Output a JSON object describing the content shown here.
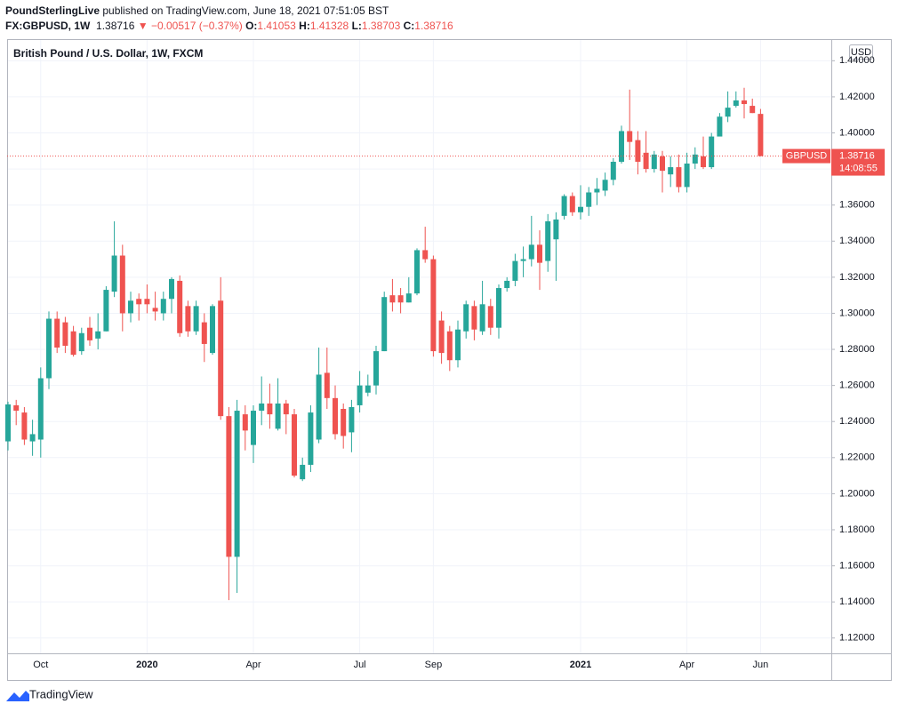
{
  "header": {
    "author": "PoundSterlingLive",
    "published": "published on TradingView.com, June 18, 2021 07:51:05 BST",
    "symbol": "FX:GBPUSD, 1W",
    "last": "1.38716",
    "arrow": "▼",
    "change": "−0.00517 (−0.37%)",
    "o_label": "O:",
    "o": "1.41053",
    "h_label": "H:",
    "h": "1.41328",
    "l_label": "L:",
    "l": "1.38703",
    "c_label": "C:",
    "c": "1.38716"
  },
  "footer": {
    "brand": "TradingView"
  },
  "chart_data": {
    "type": "candlestick",
    "title": "British Pound / U.S. Dollar, 1W, FXCM",
    "currency": "USD",
    "symbol": "GBPUSD",
    "countdown": "14:08:55",
    "up_color": "#26a69a",
    "down_color": "#ef5350",
    "grid": true,
    "ylim": [
      1.1115,
      1.4515
    ],
    "yticks": [
      {
        "value": 1.12,
        "label": "1.12000"
      },
      {
        "value": 1.14,
        "label": "1.14000"
      },
      {
        "value": 1.16,
        "label": "1.16000"
      },
      {
        "value": 1.18,
        "label": "1.18000"
      },
      {
        "value": 1.2,
        "label": "1.20000"
      },
      {
        "value": 1.22,
        "label": "1.22000"
      },
      {
        "value": 1.24,
        "label": "1.24000"
      },
      {
        "value": 1.26,
        "label": "1.26000"
      },
      {
        "value": 1.28,
        "label": "1.28000"
      },
      {
        "value": 1.3,
        "label": "1.30000"
      },
      {
        "value": 1.32,
        "label": "1.32000"
      },
      {
        "value": 1.34,
        "label": "1.34000"
      },
      {
        "value": 1.36,
        "label": "1.36000"
      },
      {
        "value": 1.38,
        "label": "1.38000"
      },
      {
        "value": 1.4,
        "label": "1.40000"
      },
      {
        "value": 1.42,
        "label": "1.42000"
      },
      {
        "value": 1.44,
        "label": "1.44000"
      }
    ],
    "categories": [
      null,
      null,
      null,
      null,
      "Oct",
      null,
      null,
      null,
      null,
      null,
      null,
      null,
      null,
      null,
      null,
      null,
      null,
      "2020",
      null,
      null,
      null,
      null,
      null,
      null,
      null,
      null,
      null,
      null,
      null,
      null,
      "Apr",
      null,
      null,
      null,
      null,
      null,
      null,
      null,
      null,
      null,
      null,
      null,
      null,
      "Jul",
      null,
      null,
      null,
      null,
      null,
      null,
      null,
      null,
      "Sep",
      null,
      null,
      null,
      null,
      null,
      null,
      null,
      null,
      null,
      null,
      null,
      null,
      null,
      null,
      null,
      null,
      null,
      "2021",
      null,
      null,
      null,
      null,
      null,
      null,
      null,
      null,
      null,
      null,
      null,
      null,
      "Apr",
      null,
      null,
      null,
      null,
      null,
      null,
      null,
      null,
      "Jun"
    ],
    "open": [
      1.229,
      1.249,
      1.245,
      1.229,
      1.23,
      1.264,
      1.297,
      1.295,
      1.29,
      1.279,
      1.292,
      1.286,
      1.29,
      1.312,
      1.332,
      1.3,
      1.308,
      1.308,
      1.303,
      1.3,
      1.308,
      1.318,
      1.304,
      1.29,
      1.295,
      1.278,
      1.307,
      1.243,
      1.165,
      1.244,
      1.227,
      1.246,
      1.25,
      1.236,
      1.25,
      1.244,
      1.208,
      1.216,
      1.23,
      1.267,
      1.253,
      1.247,
      1.234,
      1.249,
      1.256,
      1.26,
      1.279,
      1.31,
      1.31,
      1.306,
      1.311,
      1.335,
      1.33,
      1.296,
      1.29,
      1.274,
      1.29,
      1.304,
      1.29,
      1.304,
      1.292,
      1.314,
      1.318,
      1.329,
      1.33,
      1.338,
      1.329,
      1.341,
      1.354,
      1.365,
      1.356,
      1.359,
      1.367,
      1.368,
      1.374,
      1.384,
      1.401,
      1.396,
      1.389,
      1.38,
      1.387,
      1.377,
      1.381,
      1.37,
      1.383,
      1.387,
      1.381,
      1.398,
      1.409,
      1.415,
      1.418,
      1.415,
      1.41053
    ],
    "high": [
      1.251,
      1.252,
      1.248,
      1.241,
      1.27,
      1.301,
      1.301,
      1.298,
      1.293,
      1.292,
      1.298,
      1.3,
      1.315,
      1.351,
      1.338,
      1.312,
      1.311,
      1.316,
      1.312,
      1.312,
      1.32,
      1.321,
      1.307,
      1.307,
      1.3,
      1.305,
      1.32,
      1.248,
      1.252,
      1.249,
      1.249,
      1.265,
      1.261,
      1.264,
      1.252,
      1.247,
      1.22,
      1.249,
      1.281,
      1.281,
      1.26,
      1.25,
      1.252,
      1.268,
      1.266,
      1.282,
      1.312,
      1.319,
      1.314,
      1.32,
      1.336,
      1.348,
      1.332,
      1.301,
      1.293,
      1.296,
      1.307,
      1.307,
      1.318,
      1.308,
      1.316,
      1.32,
      1.333,
      1.337,
      1.354,
      1.346,
      1.355,
      1.356,
      1.366,
      1.367,
      1.371,
      1.37,
      1.375,
      1.378,
      1.386,
      1.404,
      1.424,
      1.401,
      1.401,
      1.39,
      1.39,
      1.387,
      1.388,
      1.389,
      1.392,
      1.398,
      1.4,
      1.411,
      1.423,
      1.423,
      1.425,
      1.419,
      1.41328
    ],
    "low": [
      1.224,
      1.238,
      1.227,
      1.221,
      1.22,
      1.258,
      1.278,
      1.278,
      1.276,
      1.277,
      1.282,
      1.28,
      1.29,
      1.309,
      1.29,
      1.295,
      1.296,
      1.3,
      1.296,
      1.296,
      1.3,
      1.287,
      1.287,
      1.288,
      1.273,
      1.277,
      1.241,
      1.141,
      1.145,
      1.224,
      1.217,
      1.238,
      1.236,
      1.235,
      1.233,
      1.209,
      1.207,
      1.212,
      1.228,
      1.247,
      1.23,
      1.225,
      1.223,
      1.245,
      1.254,
      1.255,
      1.279,
      1.301,
      1.3,
      1.306,
      1.31,
      1.328,
      1.276,
      1.272,
      1.268,
      1.27,
      1.286,
      1.285,
      1.288,
      1.288,
      1.286,
      1.312,
      1.315,
      1.32,
      1.326,
      1.313,
      1.323,
      1.318,
      1.352,
      1.354,
      1.352,
      1.354,
      1.36,
      1.365,
      1.371,
      1.383,
      1.385,
      1.377,
      1.378,
      1.378,
      1.367,
      1.37,
      1.367,
      1.367,
      1.38,
      1.38,
      1.38,
      1.399,
      1.406,
      1.414,
      1.408,
      1.411,
      1.38703
    ],
    "close": [
      1.2495,
      1.246,
      1.23,
      1.233,
      1.264,
      1.297,
      1.281,
      1.282,
      1.277,
      1.289,
      1.285,
      1.29,
      1.313,
      1.332,
      1.3,
      1.307,
      1.305,
      1.305,
      1.301,
      1.308,
      1.319,
      1.289,
      1.29,
      1.304,
      1.283,
      1.304,
      1.243,
      1.165,
      1.246,
      1.235,
      1.246,
      1.25,
      1.244,
      1.25,
      1.244,
      1.21,
      1.216,
      1.245,
      1.266,
      1.253,
      1.233,
      1.232,
      1.248,
      1.26,
      1.26,
      1.279,
      1.309,
      1.306,
      1.306,
      1.311,
      1.335,
      1.33,
      1.279,
      1.278,
      1.274,
      1.291,
      1.305,
      1.291,
      1.305,
      1.292,
      1.314,
      1.318,
      1.329,
      1.33,
      1.338,
      1.328,
      1.351,
      1.352,
      1.365,
      1.356,
      1.359,
      1.367,
      1.369,
      1.374,
      1.384,
      1.401,
      1.395,
      1.384,
      1.38,
      1.388,
      1.379,
      1.381,
      1.37,
      1.383,
      1.388,
      1.381,
      1.398,
      1.409,
      1.414,
      1.418,
      1.416,
      1.411,
      1.38716
    ]
  }
}
